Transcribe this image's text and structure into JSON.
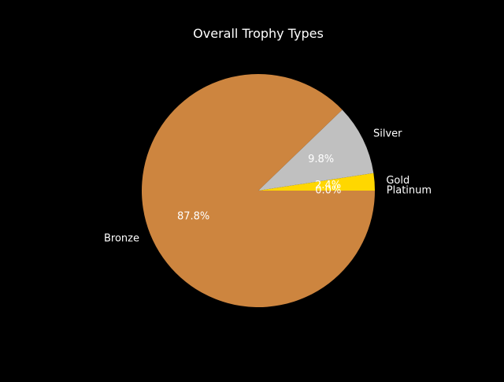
{
  "chart_data": {
    "type": "pie",
    "title": "Overall Trophy Types",
    "start_angle_deg": 0,
    "direction": "counterclockwise",
    "slices": [
      {
        "label": "Platinum",
        "value": 0.0,
        "pct_label": "0.0%",
        "color": "#FFE600"
      },
      {
        "label": "Gold",
        "value": 2.4,
        "pct_label": "2.4%",
        "color": "#FFD700"
      },
      {
        "label": "Silver",
        "value": 9.8,
        "pct_label": "9.8%",
        "color": "#C0C0C0"
      },
      {
        "label": "Bronze",
        "value": 87.8,
        "pct_label": "87.8%",
        "color": "#CD853F"
      }
    ],
    "background": "#000000"
  }
}
